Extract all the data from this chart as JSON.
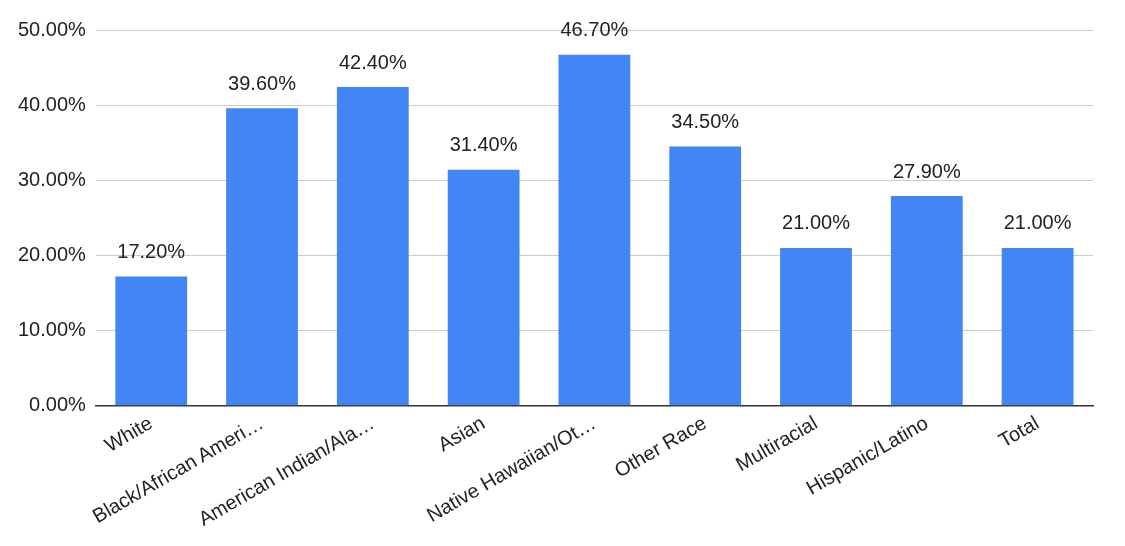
{
  "chart_data": {
    "type": "bar",
    "categories": [
      "White",
      "Black/African Ameri…",
      "American Indian/Ala…",
      "Asian",
      "Native Hawaiian/Ot…",
      "Other Race",
      "Multiracial",
      "Hispanic/Latino",
      "Total"
    ],
    "values": [
      17.2,
      39.6,
      42.4,
      31.4,
      46.7,
      34.5,
      21.0,
      27.9,
      21.0
    ],
    "value_labels": [
      "17.20%",
      "39.60%",
      "42.40%",
      "31.40%",
      "46.70%",
      "34.50%",
      "21.00%",
      "27.90%",
      "21.00%"
    ],
    "color": "#4285f4",
    "ylim": [
      0,
      50
    ],
    "yticks": [
      {
        "value": 0,
        "label": "0.00%"
      },
      {
        "value": 10,
        "label": "10.00%"
      },
      {
        "value": 20,
        "label": "20.00%"
      },
      {
        "value": 30,
        "label": "30.00%"
      },
      {
        "value": 40,
        "label": "40.00%"
      },
      {
        "value": 50,
        "label": "50.00%"
      }
    ],
    "grid": "y",
    "legend": false
  }
}
